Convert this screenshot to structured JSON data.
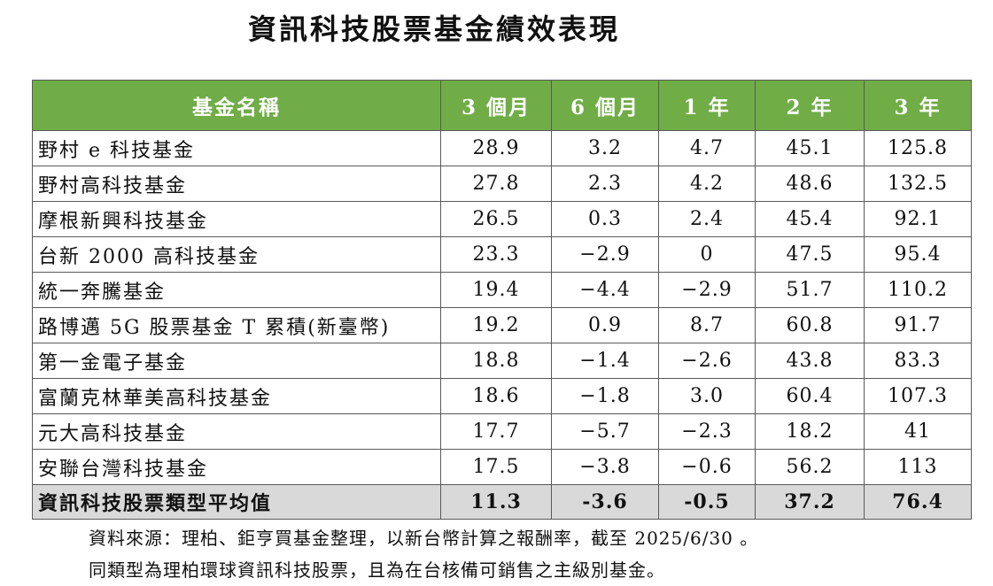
{
  "title": "資訊科技股票基金績效表現",
  "table": {
    "headers": [
      "基金名稱",
      "3 個月",
      "6 個月",
      "1 年",
      "2 年",
      "3 年"
    ],
    "rows": [
      [
        "野村 e 科技基金",
        "28.9",
        "3.2",
        "4.7",
        "45.1",
        "125.8"
      ],
      [
        "野村高科技基金",
        "27.8",
        "2.3",
        "4.2",
        "48.6",
        "132.5"
      ],
      [
        "摩根新興科技基金",
        "26.5",
        "0.3",
        "2.4",
        "45.4",
        "92.1"
      ],
      [
        "台新 2000 高科技基金",
        "23.3",
        "−2.9",
        "0",
        "47.5",
        "95.4"
      ],
      [
        "統一奔騰基金",
        "19.4",
        "−4.4",
        "−2.9",
        "51.7",
        "110.2"
      ],
      [
        "路博邁 5G 股票基金 T 累積(新臺幣)",
        "19.2",
        "0.9",
        "8.7",
        "60.8",
        "91.7"
      ],
      [
        "第一金電子基金",
        "18.8",
        "−1.4",
        "−2.6",
        "43.8",
        "83.3"
      ],
      [
        "富蘭克林華美高科技基金",
        "18.6",
        "−1.8",
        "3.0",
        "60.4",
        "107.3"
      ],
      [
        "元大高科技基金",
        "17.7",
        "−5.7",
        "−2.3",
        "18.2",
        "41"
      ],
      [
        "安聯台灣科技基金",
        "17.5",
        "−3.8",
        "−0.6",
        "56.2",
        "113"
      ]
    ],
    "average": [
      "資訊科技股票類型平均值",
      "11.3",
      "-3.6",
      "-0.5",
      "37.2",
      "76.4"
    ]
  },
  "notes": [
    "資料來源：理柏、鉅亨買基金整理，以新台幣計算之報酬率，截至 2025/6/30 。",
    "同類型為理柏環球資訊科技股票，且為在台核備可銷售之主級別基金。"
  ],
  "colors": {
    "header_bg": "#70ad47",
    "header_text": "#ffffff",
    "average_row_bg": "#d9d9d9",
    "border": "#5a5a5a"
  }
}
